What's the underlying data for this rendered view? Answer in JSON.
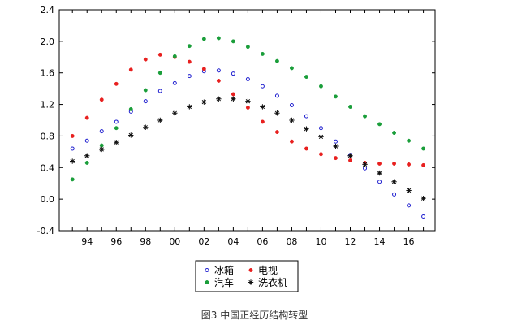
{
  "chart_data": {
    "type": "scatter",
    "x": [
      93,
      94,
      95,
      96,
      97,
      98,
      99,
      100,
      101,
      102,
      103,
      104,
      105,
      106,
      107,
      108,
      109,
      110,
      111,
      112,
      113,
      114,
      115,
      116,
      117
    ],
    "x_tick_values": [
      94,
      96,
      98,
      100,
      102,
      104,
      106,
      108,
      110,
      112,
      114,
      116
    ],
    "x_tick_labels": [
      "94",
      "96",
      "98",
      "00",
      "02",
      "04",
      "06",
      "08",
      "10",
      "12",
      "14",
      "16"
    ],
    "xlim": [
      92.1,
      117.8
    ],
    "ylim": [
      -0.4,
      2.4
    ],
    "y_tick_values": [
      -0.4,
      0.0,
      0.4,
      0.8,
      1.2,
      1.6,
      2.0,
      2.4
    ],
    "y_tick_labels": [
      "-0.4",
      "0.0",
      "0.4",
      "0.8",
      "1.2",
      "1.6",
      "2.0",
      "2.4"
    ],
    "series": [
      {
        "name": "冰箱",
        "marker": "open-circle",
        "color": "#1f1fcf",
        "values": [
          0.64,
          0.74,
          0.86,
          0.98,
          1.11,
          1.24,
          1.37,
          1.47,
          1.56,
          1.62,
          1.63,
          1.59,
          1.52,
          1.43,
          1.31,
          1.19,
          1.05,
          0.9,
          0.73,
          0.56,
          0.39,
          0.22,
          0.06,
          -0.08,
          -0.22
        ]
      },
      {
        "name": "电视",
        "marker": "filled-circle",
        "color": "#e8201f",
        "values": [
          0.8,
          1.03,
          1.26,
          1.46,
          1.64,
          1.77,
          1.83,
          1.8,
          1.74,
          1.65,
          1.5,
          1.33,
          1.16,
          0.98,
          0.85,
          0.73,
          0.64,
          0.57,
          0.52,
          0.49,
          0.46,
          0.45,
          0.45,
          0.44,
          0.43
        ]
      },
      {
        "name": "汽车",
        "marker": "filled-circle",
        "color": "#1a9e3a",
        "values": [
          0.25,
          0.46,
          0.68,
          0.9,
          1.14,
          1.38,
          1.6,
          1.81,
          1.94,
          2.03,
          2.04,
          2.0,
          1.93,
          1.84,
          1.75,
          1.66,
          1.55,
          1.43,
          1.3,
          1.17,
          1.05,
          0.95,
          0.84,
          0.74,
          0.64
        ]
      },
      {
        "name": "洗衣机",
        "marker": "asterisk",
        "color": "#111111",
        "values": [
          0.48,
          0.55,
          0.63,
          0.72,
          0.81,
          0.91,
          1.0,
          1.09,
          1.17,
          1.23,
          1.27,
          1.27,
          1.24,
          1.17,
          1.09,
          1.0,
          0.89,
          0.79,
          0.67,
          0.55,
          0.44,
          0.33,
          0.22,
          0.11,
          0.01
        ]
      }
    ],
    "legend": {
      "placement": "bottom-center",
      "rows": [
        {
          "left": "冰箱",
          "right": "电视"
        },
        {
          "left": "汽车",
          "right": "洗衣机"
        }
      ]
    },
    "caption": "图3 中国正经历结构转型",
    "grid": false
  }
}
